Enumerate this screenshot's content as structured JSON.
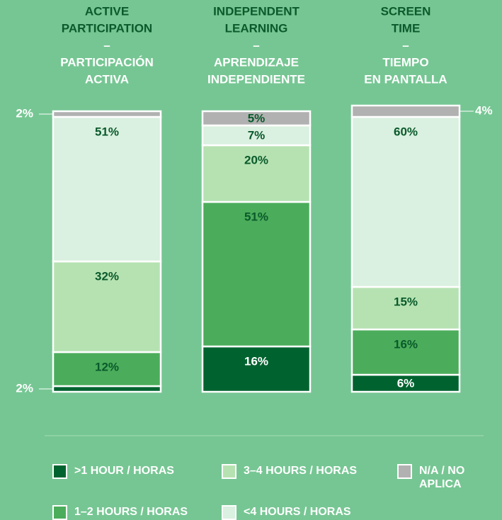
{
  "chart_data": {
    "type": "stacked-bar",
    "categories": [
      [
        "ACTIVE",
        "PARTICIPATION",
        "–",
        "PARTICIPACIÓN",
        "ACTIVA"
      ],
      [
        "INDEPENDENT",
        "LEARNING",
        "–",
        "APRENDIZAJE",
        "INDEPENDIENTE"
      ],
      [
        "SCREEN",
        "TIME",
        "–",
        "TIEMPO",
        "EN PANTALLA"
      ]
    ],
    "series": [
      {
        "name": ">1 HOUR / HORAS",
        "color": "#00632f",
        "values": [
          2,
          16,
          6
        ],
        "value_labels": [
          "2%",
          "16%",
          "6%"
        ]
      },
      {
        "name": "1–2 HOURS / HORAS",
        "color": "#4bad5b",
        "values": [
          12,
          51,
          16
        ],
        "value_labels": [
          "12%",
          "51%",
          "16%"
        ]
      },
      {
        "name": "3–4 HOURS / HORAS",
        "color": "#b6e2b2",
        "values": [
          32,
          20,
          15
        ],
        "value_labels": [
          "32%",
          "20%",
          "15%"
        ]
      },
      {
        "name": "<4 HOURS / HORAS",
        "color": "#daf0e0",
        "values": [
          51,
          7,
          60
        ],
        "value_labels": [
          "51%",
          "7%",
          "60%"
        ]
      },
      {
        "name": "N/A / NO APLICA",
        "color": "#b1b1b1",
        "values": [
          2,
          5,
          4
        ],
        "value_labels": [
          "2%",
          "5%",
          "4%"
        ]
      }
    ]
  }
}
